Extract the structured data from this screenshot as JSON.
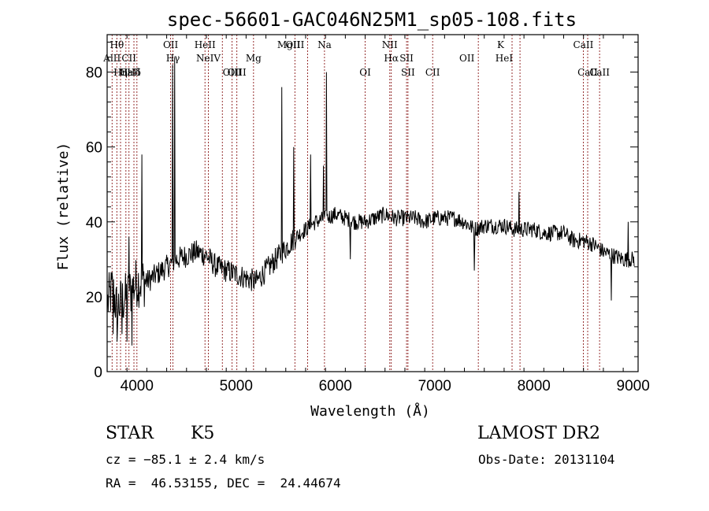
{
  "chart_data": {
    "type": "line",
    "title": "spec-56601-GAC046N25M1_sp05-108.fits",
    "xlabel": "Wavelength (Å)",
    "ylabel": "Flux (relative)",
    "xlim": [
      3700,
      9050
    ],
    "ylim": [
      0,
      90
    ],
    "xticks": [
      4000,
      5000,
      6000,
      7000,
      8000,
      9000
    ],
    "yticks": [
      0,
      20,
      40,
      60,
      80
    ],
    "grid": false,
    "line_color": "#000000",
    "marker_color": "#8b1a1a",
    "spectrum_anchors": [
      [
        3700,
        18
      ],
      [
        3750,
        22
      ],
      [
        3800,
        17
      ],
      [
        3850,
        19
      ],
      [
        3900,
        20
      ],
      [
        3950,
        22
      ],
      [
        4000,
        24
      ],
      [
        4100,
        24
      ],
      [
        4200,
        26
      ],
      [
        4300,
        28
      ],
      [
        4400,
        30
      ],
      [
        4500,
        31
      ],
      [
        4600,
        32
      ],
      [
        4700,
        31
      ],
      [
        4800,
        28
      ],
      [
        4900,
        27
      ],
      [
        5000,
        26
      ],
      [
        5100,
        25
      ],
      [
        5200,
        24
      ],
      [
        5300,
        27
      ],
      [
        5400,
        30
      ],
      [
        5500,
        33
      ],
      [
        5600,
        36
      ],
      [
        5700,
        38
      ],
      [
        5800,
        40
      ],
      [
        5900,
        41
      ],
      [
        6000,
        42
      ],
      [
        6100,
        41
      ],
      [
        6200,
        40
      ],
      [
        6300,
        40
      ],
      [
        6400,
        41
      ],
      [
        6500,
        42
      ],
      [
        6600,
        41
      ],
      [
        6700,
        41
      ],
      [
        6800,
        41
      ],
      [
        6900,
        40
      ],
      [
        7000,
        41
      ],
      [
        7100,
        41
      ],
      [
        7200,
        41
      ],
      [
        7300,
        40
      ],
      [
        7400,
        38
      ],
      [
        7500,
        39
      ],
      [
        7600,
        39
      ],
      [
        7700,
        39
      ],
      [
        7800,
        38
      ],
      [
        7900,
        38
      ],
      [
        8000,
        38
      ],
      [
        8100,
        37
      ],
      [
        8200,
        37
      ],
      [
        8300,
        37
      ],
      [
        8400,
        35
      ],
      [
        8500,
        35
      ],
      [
        8600,
        34
      ],
      [
        8700,
        32
      ],
      [
        8800,
        31
      ],
      [
        8900,
        30
      ],
      [
        9000,
        30
      ]
    ],
    "spectrum_spikes": [
      [
        3760,
        10
      ],
      [
        3800,
        8
      ],
      [
        3850,
        10
      ],
      [
        3900,
        8
      ],
      [
        3920,
        36
      ],
      [
        3950,
        7
      ],
      [
        4050,
        58
      ],
      [
        4360,
        82
      ],
      [
        4380,
        84
      ],
      [
        5460,
        76
      ],
      [
        5580,
        60
      ],
      [
        5750,
        58
      ],
      [
        5910,
        80
      ],
      [
        5880,
        55
      ],
      [
        6150,
        30
      ],
      [
        7400,
        27
      ],
      [
        7850,
        48
      ],
      [
        8780,
        19
      ],
      [
        8950,
        40
      ]
    ],
    "lines": [
      {
        "name": "Hθ",
        "x": 3798,
        "row": 1
      },
      {
        "name": "AlII",
        "x": 3750,
        "row": 2
      },
      {
        "name": "Hη",
        "x": 3835,
        "row": 3
      },
      {
        "name": "Hε",
        "x": 3889,
        "row": 3
      },
      {
        "name": "CII",
        "x": 3920,
        "row": 2
      },
      {
        "name": "CaII",
        "x": 3934,
        "row": 3
      },
      {
        "name": "Hδ",
        "x": 3970,
        "row": 3
      },
      {
        "name": "OII",
        "x": 4340,
        "row": 1
      },
      {
        "name": "Hγ",
        "x": 4363,
        "row": 2
      },
      {
        "name": "HeII",
        "x": 4686,
        "row": 1
      },
      {
        "name": "NeIV",
        "x": 4720,
        "row": 2
      },
      {
        "name": "OIII",
        "x": 4959,
        "row": 3
      },
      {
        "name": "OIII",
        "x": 5007,
        "row": 3
      },
      {
        "name": "Mg",
        "x": 5175,
        "row": 2
      },
      {
        "name": "MgII",
        "x": 5530,
        "row": 1
      },
      {
        "name": "OIII",
        "x": 5592,
        "row": 1
      },
      {
        "name": "Na",
        "x": 5890,
        "row": 1
      },
      {
        "name": "OI",
        "x": 6300,
        "row": 3
      },
      {
        "name": "NII",
        "x": 6548,
        "row": 1
      },
      {
        "name": "Hα",
        "x": 6563,
        "row": 2
      },
      {
        "name": "SII",
        "x": 6717,
        "row": 2
      },
      {
        "name": "SII",
        "x": 6731,
        "row": 3
      },
      {
        "name": "CII",
        "x": 6980,
        "row": 3
      },
      {
        "name": "OII",
        "x": 7325,
        "row": 2
      },
      {
        "name": "K",
        "x": 7665,
        "row": 1
      },
      {
        "name": "HeI",
        "x": 7700,
        "row": 2
      },
      {
        "name": "CaII",
        "x": 8498,
        "row": 1
      },
      {
        "name": "CaII",
        "x": 8542,
        "row": 3
      },
      {
        "name": "CaII",
        "x": 8662,
        "row": 3
      }
    ],
    "marker_positions": [
      3750,
      3798,
      3835,
      3889,
      3920,
      3970,
      4000,
      4340,
      4363,
      4686,
      4720,
      4861,
      4959,
      5007,
      5175,
      5592,
      5720,
      5890,
      6300,
      6548,
      6563,
      6717,
      6731,
      6980,
      7440,
      7780,
      7860,
      8498,
      8542,
      8662
    ]
  },
  "info": {
    "object_class": "STAR",
    "subclass": "K5",
    "survey": "LAMOST DR2",
    "cz": "cz = −85.1 ± 2.4 km/s",
    "obs_date": "Obs-Date: 20131104",
    "coords": "RA =  46.53155, DEC =  24.44674"
  }
}
